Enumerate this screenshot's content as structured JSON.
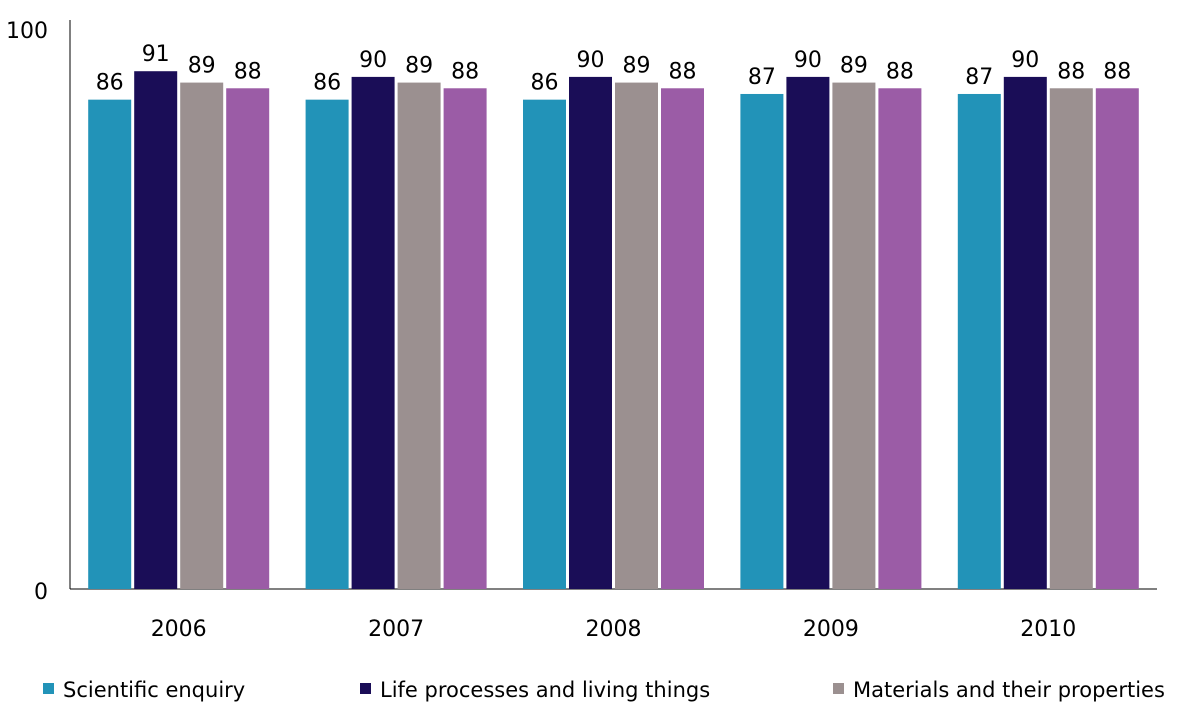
{
  "chart_data": {
    "type": "bar",
    "categories": [
      "2006",
      "2007",
      "2008",
      "2009",
      "2010"
    ],
    "series": [
      {
        "name": "Scientific enquiry",
        "color": "#2293b8",
        "values": [
          86,
          86,
          86,
          87,
          87
        ]
      },
      {
        "name": "Life processes and living things",
        "color": "#1a0d57",
        "values": [
          91,
          90,
          90,
          90,
          90
        ]
      },
      {
        "name": "Materials and their properties",
        "color": "#9b9090",
        "color_name": "gray",
        "values": [
          89,
          89,
          89,
          89,
          88
        ]
      },
      {
        "name": "",
        "color": "#9b5ca6",
        "values": [
          88,
          88,
          88,
          88,
          88
        ]
      }
    ],
    "ylim": [
      0,
      100
    ],
    "yticks": [
      "0",
      "100"
    ],
    "title": "",
    "xlabel": "",
    "ylabel": "",
    "grid": false,
    "legend_position": "bottom"
  }
}
